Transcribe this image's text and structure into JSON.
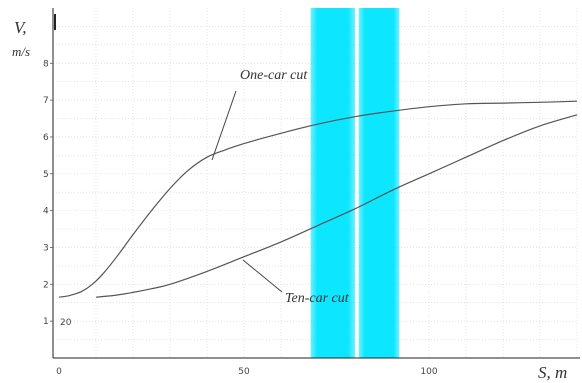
{
  "chart_data": {
    "type": "line",
    "xlabel": "S, m",
    "ylabel": "V,",
    "ylabel_unit": "m/s",
    "xlim": [
      0,
      140
    ],
    "ylim": [
      0,
      9.5
    ],
    "x_ticks": [
      0,
      50,
      100
    ],
    "y_ticks": [
      1,
      2,
      3,
      4,
      5,
      6,
      7,
      8
    ],
    "extra_label": "20",
    "grid": true,
    "series": [
      {
        "name": "One-car cut",
        "x": [
          0,
          3,
          6,
          9,
          12,
          16,
          20,
          25,
          30,
          35,
          40,
          45,
          50,
          60,
          70,
          80,
          90,
          100,
          110,
          120,
          130,
          140
        ],
        "y": [
          1.65,
          1.7,
          1.8,
          2.0,
          2.3,
          2.8,
          3.35,
          4.0,
          4.6,
          5.1,
          5.45,
          5.65,
          5.82,
          6.1,
          6.35,
          6.55,
          6.7,
          6.82,
          6.9,
          6.92,
          6.94,
          6.97
        ]
      },
      {
        "name": "Ten-car cut",
        "x": [
          10,
          15,
          20,
          25,
          30,
          40,
          50,
          60,
          70,
          80,
          90,
          100,
          110,
          120,
          130,
          140
        ],
        "y": [
          1.65,
          1.7,
          1.78,
          1.88,
          2.0,
          2.35,
          2.75,
          3.15,
          3.6,
          4.05,
          4.55,
          5.0,
          5.45,
          5.9,
          6.3,
          6.6
        ]
      }
    ],
    "annotations": [
      {
        "text": "One-car cut",
        "series": "One-car cut"
      },
      {
        "text": "Ten-car cut",
        "series": "Ten-car cut"
      }
    ],
    "highlight_bands": [
      {
        "from": 68,
        "to": 80,
        "color": "#00e5ff"
      },
      {
        "from": 81,
        "to": 92,
        "color": "#00e5ff"
      }
    ],
    "colors": {
      "curve": "#555555",
      "grid": "#d2d2d2",
      "band": "#00e5ff"
    }
  }
}
